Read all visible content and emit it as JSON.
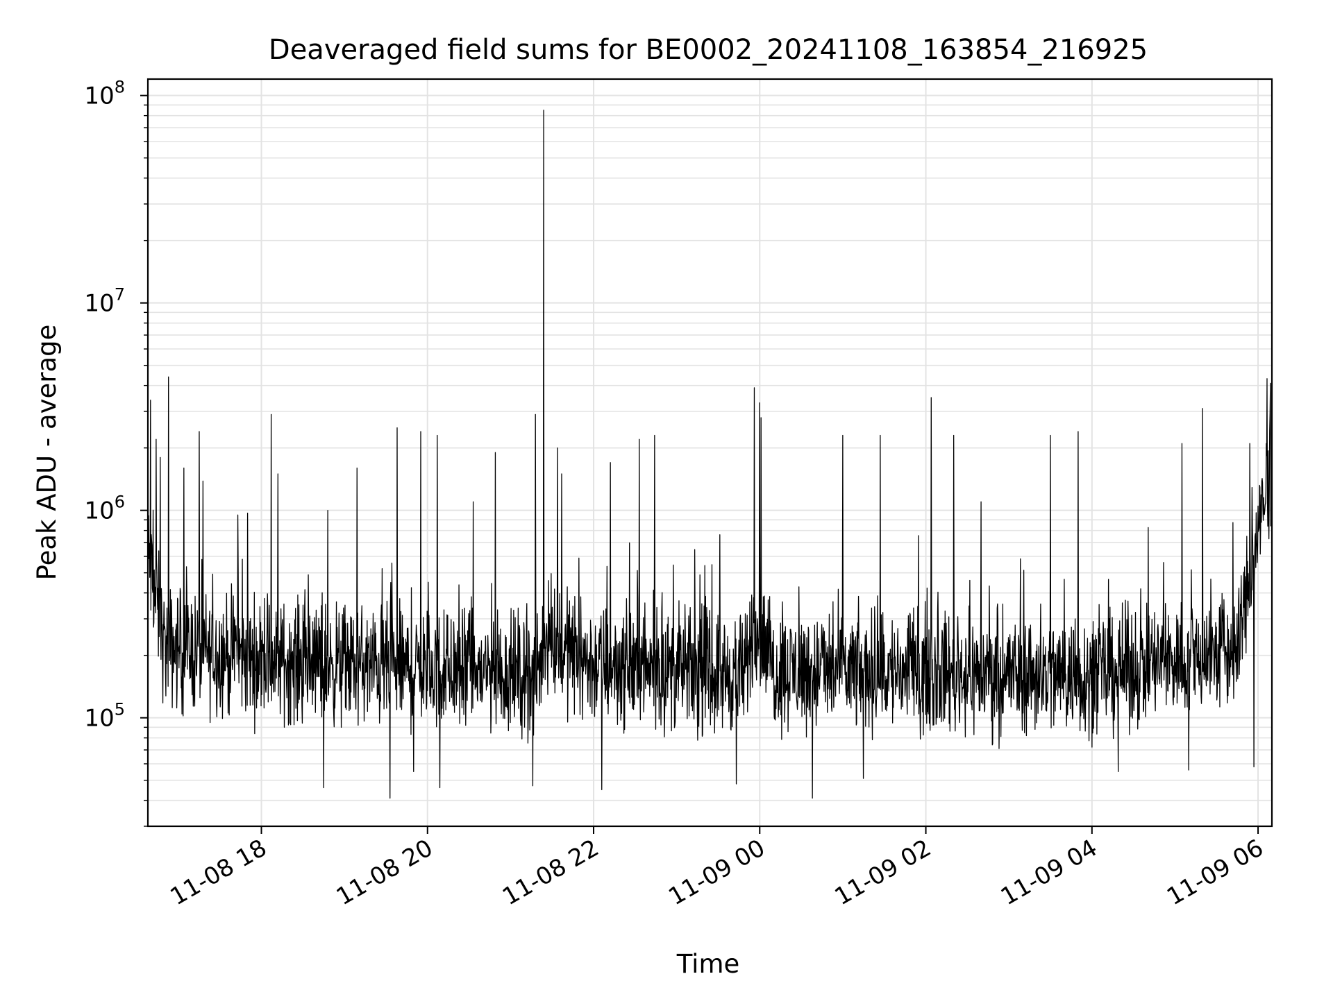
{
  "chart_data": {
    "type": "line",
    "title": "Deaveraged field sums for BE0002_20241108_163854_216925",
    "xlabel": "Time",
    "ylabel": "Peak ADU - average",
    "yscale": "log",
    "ylim": [
      30000,
      120000000
    ],
    "xlim": [
      "2024-11-08 16:38",
      "2024-11-09 06:10"
    ],
    "grid": true,
    "line_color": "#000000",
    "grid_color": "#e3e3e3",
    "x_ticks": [
      {
        "value": "2024-11-08 18:00",
        "label": "11-08 18"
      },
      {
        "value": "2024-11-08 20:00",
        "label": "11-08 20"
      },
      {
        "value": "2024-11-08 22:00",
        "label": "11-08 22"
      },
      {
        "value": "2024-11-09 00:00",
        "label": "11-09 00"
      },
      {
        "value": "2024-11-09 02:00",
        "label": "11-09 02"
      },
      {
        "value": "2024-11-09 04:00",
        "label": "11-09 04"
      },
      {
        "value": "2024-11-09 06:00",
        "label": "11-09 06"
      }
    ],
    "y_ticks": [
      {
        "value": 100000,
        "base": "10",
        "exp": "5"
      },
      {
        "value": 1000000,
        "base": "10",
        "exp": "6"
      },
      {
        "value": 10000000,
        "base": "10",
        "exp": "7"
      },
      {
        "value": 100000000,
        "base": "10",
        "exp": "8"
      }
    ],
    "baseline": [
      {
        "x": "2024-11-08 16:38",
        "y": 600000
      },
      {
        "x": "2024-11-08 16:50",
        "y": 220000
      },
      {
        "x": "2024-11-08 18:00",
        "y": 190000
      },
      {
        "x": "2024-11-08 20:00",
        "y": 170000
      },
      {
        "x": "2024-11-08 21:20",
        "y": 160000
      },
      {
        "x": "2024-11-08 21:25",
        "y": 250000
      },
      {
        "x": "2024-11-08 22:00",
        "y": 180000
      },
      {
        "x": "2024-11-08 23:50",
        "y": 160000
      },
      {
        "x": "2024-11-08 23:56",
        "y": 300000
      },
      {
        "x": "2024-11-09 00:10",
        "y": 170000
      },
      {
        "x": "2024-11-09 02:00",
        "y": 165000
      },
      {
        "x": "2024-11-09 04:00",
        "y": 160000
      },
      {
        "x": "2024-11-09 05:00",
        "y": 190000
      },
      {
        "x": "2024-11-09 05:45",
        "y": 210000
      },
      {
        "x": "2024-11-09 05:58",
        "y": 700000
      },
      {
        "x": "2024-11-09 06:10",
        "y": 1300000
      }
    ],
    "spikes": [
      {
        "x": "2024-11-08 16:40",
        "y": 3400000
      },
      {
        "x": "2024-11-08 16:44",
        "y": 2200000
      },
      {
        "x": "2024-11-08 16:47",
        "y": 1800000
      },
      {
        "x": "2024-11-08 16:53",
        "y": 4400000
      },
      {
        "x": "2024-11-08 17:04",
        "y": 1600000
      },
      {
        "x": "2024-11-08 17:15",
        "y": 2400000
      },
      {
        "x": "2024-11-08 17:43",
        "y": 950000
      },
      {
        "x": "2024-11-08 17:50",
        "y": 970000
      },
      {
        "x": "2024-11-08 18:07",
        "y": 2900000
      },
      {
        "x": "2024-11-08 18:12",
        "y": 1500000
      },
      {
        "x": "2024-11-08 18:48",
        "y": 1000000
      },
      {
        "x": "2024-11-08 19:09",
        "y": 1600000
      },
      {
        "x": "2024-11-08 19:38",
        "y": 2500000
      },
      {
        "x": "2024-11-08 19:55",
        "y": 2400000
      },
      {
        "x": "2024-11-08 20:07",
        "y": 2300000
      },
      {
        "x": "2024-11-08 20:33",
        "y": 1100000
      },
      {
        "x": "2024-11-08 20:49",
        "y": 1900000
      },
      {
        "x": "2024-11-08 21:18",
        "y": 2900000
      },
      {
        "x": "2024-11-08 21:24",
        "y": 85000000
      },
      {
        "x": "2024-11-08 21:34",
        "y": 2000000
      },
      {
        "x": "2024-11-08 21:37",
        "y": 1500000
      },
      {
        "x": "2024-11-08 22:12",
        "y": 1700000
      },
      {
        "x": "2024-11-08 22:33",
        "y": 2200000
      },
      {
        "x": "2024-11-08 22:44",
        "y": 2300000
      },
      {
        "x": "2024-11-08 23:56",
        "y": 3900000
      },
      {
        "x": "2024-11-09 00:00",
        "y": 3300000
      },
      {
        "x": "2024-11-09 00:01",
        "y": 2800000
      },
      {
        "x": "2024-11-09 01:00",
        "y": 2300000
      },
      {
        "x": "2024-11-09 01:27",
        "y": 2300000
      },
      {
        "x": "2024-11-09 02:04",
        "y": 3500000
      },
      {
        "x": "2024-11-09 02:20",
        "y": 2300000
      },
      {
        "x": "2024-11-09 02:40",
        "y": 1100000
      },
      {
        "x": "2024-11-09 03:30",
        "y": 2300000
      },
      {
        "x": "2024-11-09 03:50",
        "y": 2400000
      },
      {
        "x": "2024-11-09 05:05",
        "y": 2100000
      },
      {
        "x": "2024-11-09 05:20",
        "y": 3100000
      },
      {
        "x": "2024-11-09 05:54",
        "y": 2100000
      },
      {
        "x": "2024-11-09 06:06",
        "y": 2100000
      },
      {
        "x": "2024-11-09 06:09",
        "y": 4100000
      }
    ],
    "dips": [
      {
        "x": "2024-11-08 18:45",
        "y": 46000
      },
      {
        "x": "2024-11-08 19:33",
        "y": 41000
      },
      {
        "x": "2024-11-08 19:50",
        "y": 55000
      },
      {
        "x": "2024-11-08 20:09",
        "y": 46000
      },
      {
        "x": "2024-11-08 21:16",
        "y": 47000
      },
      {
        "x": "2024-11-08 22:06",
        "y": 45000
      },
      {
        "x": "2024-11-08 23:43",
        "y": 48000
      },
      {
        "x": "2024-11-09 00:38",
        "y": 41000
      },
      {
        "x": "2024-11-09 01:15",
        "y": 51000
      },
      {
        "x": "2024-11-09 04:19",
        "y": 55000
      },
      {
        "x": "2024-11-09 05:10",
        "y": 56000
      },
      {
        "x": "2024-11-09 05:57",
        "y": 58000
      }
    ],
    "noise_spread": 2.4
  }
}
